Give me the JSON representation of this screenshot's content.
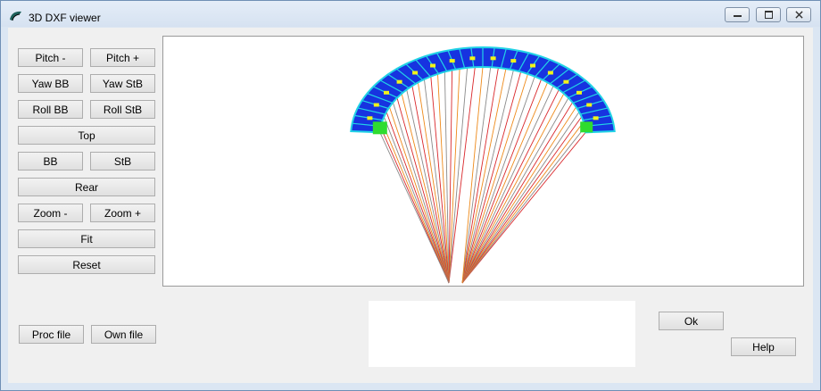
{
  "window": {
    "title": "3D DXF viewer",
    "controls": [
      "minimize-icon",
      "maximize-icon",
      "close-icon"
    ]
  },
  "controls": {
    "pitch_minus": "Pitch -",
    "pitch_plus": "Pitch +",
    "yaw_bb": "Yaw BB",
    "yaw_stb": "Yaw StB",
    "roll_bb": "Roll BB",
    "roll_stb": "Roll StB",
    "top": "Top",
    "bb": "BB",
    "stb": "StB",
    "rear": "Rear",
    "zoom_minus": "Zoom -",
    "zoom_plus": "Zoom +",
    "fit": "Fit",
    "reset": "Reset",
    "proc_file": "Proc file",
    "own_file": "Own file"
  },
  "dialog": {
    "ok": "Ok",
    "help": "Help"
  },
  "viewport": {
    "content": "paraglider-3d-model",
    "colors": {
      "canopy_top": "#1733e0",
      "canopy_edge": "#22d3e6",
      "wingtip": "#2fdc2f",
      "highlight": "#f2f21a",
      "line_gray": "#8a8a8a",
      "line_red": "#d9272b",
      "line_orange": "#ee8a1a"
    }
  }
}
